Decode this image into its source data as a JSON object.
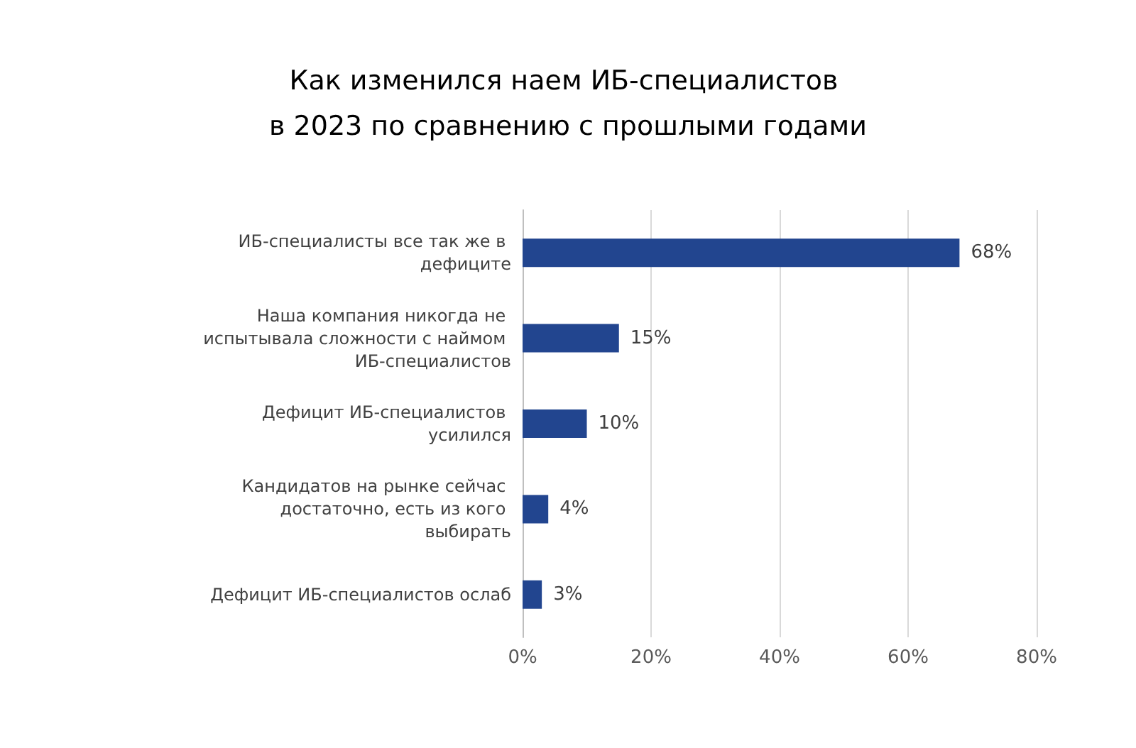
{
  "chart_data": {
    "type": "bar",
    "orientation": "horizontal",
    "title": "Как изменился наем ИБ-специалистов в 2023 по сравнению с прошлыми годами",
    "categories": [
      "ИБ-специалисты все так же в дефиците",
      "Наша компания никогда не испытывала сложности с наймом ИБ-специалистов",
      "Дефицит ИБ-специалистов усилился",
      "Кандидатов на рынке сейчас достаточно, есть из кого выбирать",
      "Дефицит ИБ-специалистов ослаб"
    ],
    "values": [
      68,
      15,
      10,
      4,
      3
    ],
    "value_labels": [
      "68%",
      "15%",
      "10%",
      "4%",
      "3%"
    ],
    "color": "#22458f",
    "xlim": [
      0,
      80
    ],
    "xticks": [
      {
        "value": 0,
        "label": "0%"
      },
      {
        "value": 20,
        "label": "20%"
      },
      {
        "value": 40,
        "label": "40%"
      },
      {
        "value": 60,
        "label": "60%"
      },
      {
        "value": 80,
        "label": "80%"
      }
    ],
    "grid": "x"
  }
}
